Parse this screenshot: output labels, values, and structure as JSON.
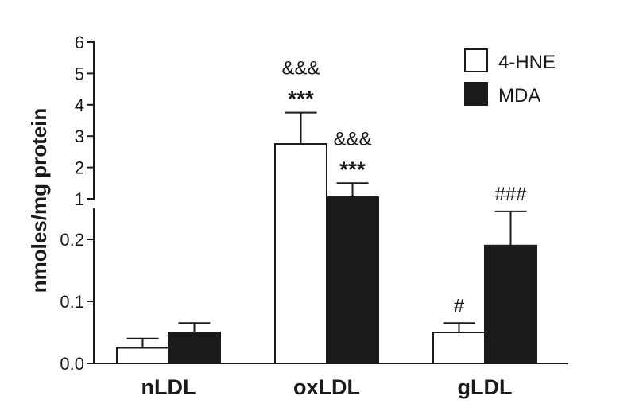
{
  "chart_data": {
    "type": "bar",
    "ylabel": "nmoles/mg protein",
    "categories": [
      "nLDL",
      "oxLDL",
      "gLDL"
    ],
    "series": [
      {
        "name": "4-HNE",
        "color": "#ffffff",
        "values": [
          0.025,
          2.75,
          0.05
        ],
        "errors": [
          0.015,
          1.0,
          0.015
        ]
      },
      {
        "name": "MDA",
        "color": "#1a1a1a",
        "values": [
          0.05,
          1.05,
          0.19
        ],
        "errors": [
          0.015,
          0.45,
          0.055
        ]
      }
    ],
    "y_axis_broken": true,
    "y_lower_ticks": [
      "0.0",
      "0.1",
      "0.2"
    ],
    "y_upper_ticks": [
      "1",
      "2",
      "3",
      "4",
      "5",
      "6"
    ],
    "ylim_lower": [
      0,
      0.25
    ],
    "ylim_upper": [
      1,
      6
    ],
    "annotations": [
      {
        "category": "oxLDL",
        "series": "4-HNE",
        "lines": [
          "&&&",
          "***"
        ]
      },
      {
        "category": "oxLDL",
        "series": "MDA",
        "lines": [
          "&&&",
          "***"
        ]
      },
      {
        "category": "gLDL",
        "series": "4-HNE",
        "lines": [
          "#"
        ]
      },
      {
        "category": "gLDL",
        "series": "MDA",
        "lines": [
          "###"
        ]
      }
    ],
    "legend_position": "top-right",
    "grid": false
  }
}
